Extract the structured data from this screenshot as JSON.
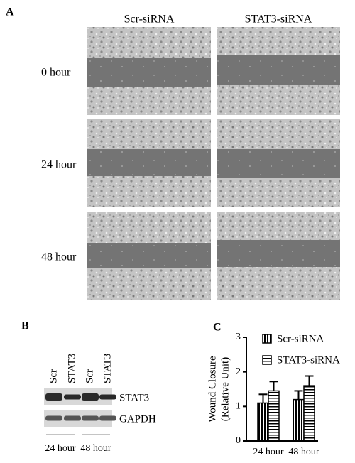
{
  "panel_labels": [
    "A",
    "B",
    "C"
  ],
  "panel_a": {
    "columns": [
      "Scr-siRNA",
      "STAT3-siRNA"
    ],
    "rows": [
      "0 hour",
      "24 hour",
      "48 hour"
    ]
  },
  "panel_b": {
    "lanes": [
      "Scr",
      "STAT3",
      "Scr",
      "STAT3"
    ],
    "bands": [
      "STAT3",
      "GAPDH"
    ],
    "groups": [
      "24 hour",
      "48 hour"
    ]
  },
  "chart_data": {
    "type": "bar",
    "ylabel": [
      "Wound Closure",
      "(Relative Unit)"
    ],
    "categories": [
      "24 hour",
      "48 hour"
    ],
    "series": [
      {
        "name": "Scr-siRNA",
        "color": "#000000",
        "hatch": "vertical",
        "values": [
          1.1,
          1.2
        ],
        "errors": [
          0.25,
          0.25
        ]
      },
      {
        "name": "STAT3-siRNA",
        "color": "#000000",
        "hatch": "horizontal",
        "values": [
          1.45,
          1.6
        ],
        "errors": [
          0.27,
          0.28
        ]
      }
    ],
    "ylim": [
      0,
      3
    ],
    "yticks": [
      0,
      1,
      2,
      3
    ]
  }
}
